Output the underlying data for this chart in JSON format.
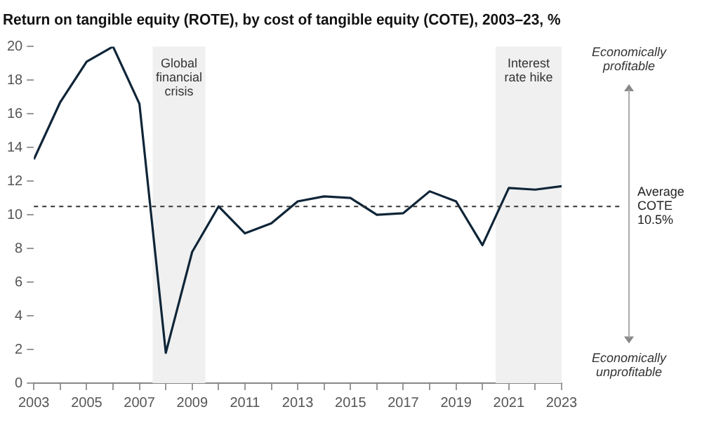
{
  "chart_data": {
    "type": "line",
    "title": "Return on tangible equity (ROTE), by cost of tangible equity (COTE), 2003–23, %",
    "x": [
      2003,
      2004,
      2005,
      2006,
      2007,
      2008,
      2009,
      2010,
      2011,
      2012,
      2013,
      2014,
      2015,
      2016,
      2017,
      2018,
      2019,
      2020,
      2021,
      2022,
      2023
    ],
    "series": [
      {
        "color": "#0f2538",
        "values": [
          13.3,
          16.7,
          19.1,
          20.0,
          16.6,
          1.8,
          7.8,
          10.5,
          8.9,
          9.5,
          10.8,
          11.1,
          11.0,
          10.0,
          10.1,
          11.4,
          10.8,
          8.2,
          11.6,
          11.5,
          11.7
        ]
      }
    ],
    "xlim": [
      2003,
      2023
    ],
    "xticks": [
      2003,
      {
        "value": 2004,
        "label": null
      },
      2005,
      {
        "value": 2006,
        "label": null
      },
      2007,
      {
        "value": 2008,
        "label": null
      },
      2009,
      {
        "value": 2010,
        "label": null
      },
      2011,
      {
        "value": 2012,
        "label": null
      },
      2013,
      {
        "value": 2014,
        "label": null
      },
      2015,
      {
        "value": 2016,
        "label": null
      },
      2017,
      {
        "value": 2018,
        "label": null
      },
      2019,
      {
        "value": 2020,
        "label": null
      },
      2021,
      {
        "value": 2022,
        "label": null
      },
      2023
    ],
    "ylim": [
      0,
      20
    ],
    "yticks": [
      0,
      2,
      4,
      6,
      8,
      10,
      12,
      14,
      16,
      18,
      20
    ],
    "bands": [
      {
        "axis": "x",
        "from": 2007.5,
        "to": 2009.5,
        "label": "Global financial crisis",
        "color": "#f0f0f0"
      },
      {
        "axis": "x",
        "from": 2020.5,
        "to": 2023,
        "label": "Interest rate hike",
        "color": "#f0f0f0"
      }
    ],
    "ref_lines": [
      {
        "axis": "y",
        "value": 10.5,
        "label": "Average COTE 10.5%",
        "line_style": "dashed",
        "color": "#333333"
      }
    ],
    "annotations": [
      "Economically profitable",
      "Economically unprofitable"
    ],
    "grid": false,
    "legend": false,
    "marker": "none",
    "line_style": "solid"
  }
}
